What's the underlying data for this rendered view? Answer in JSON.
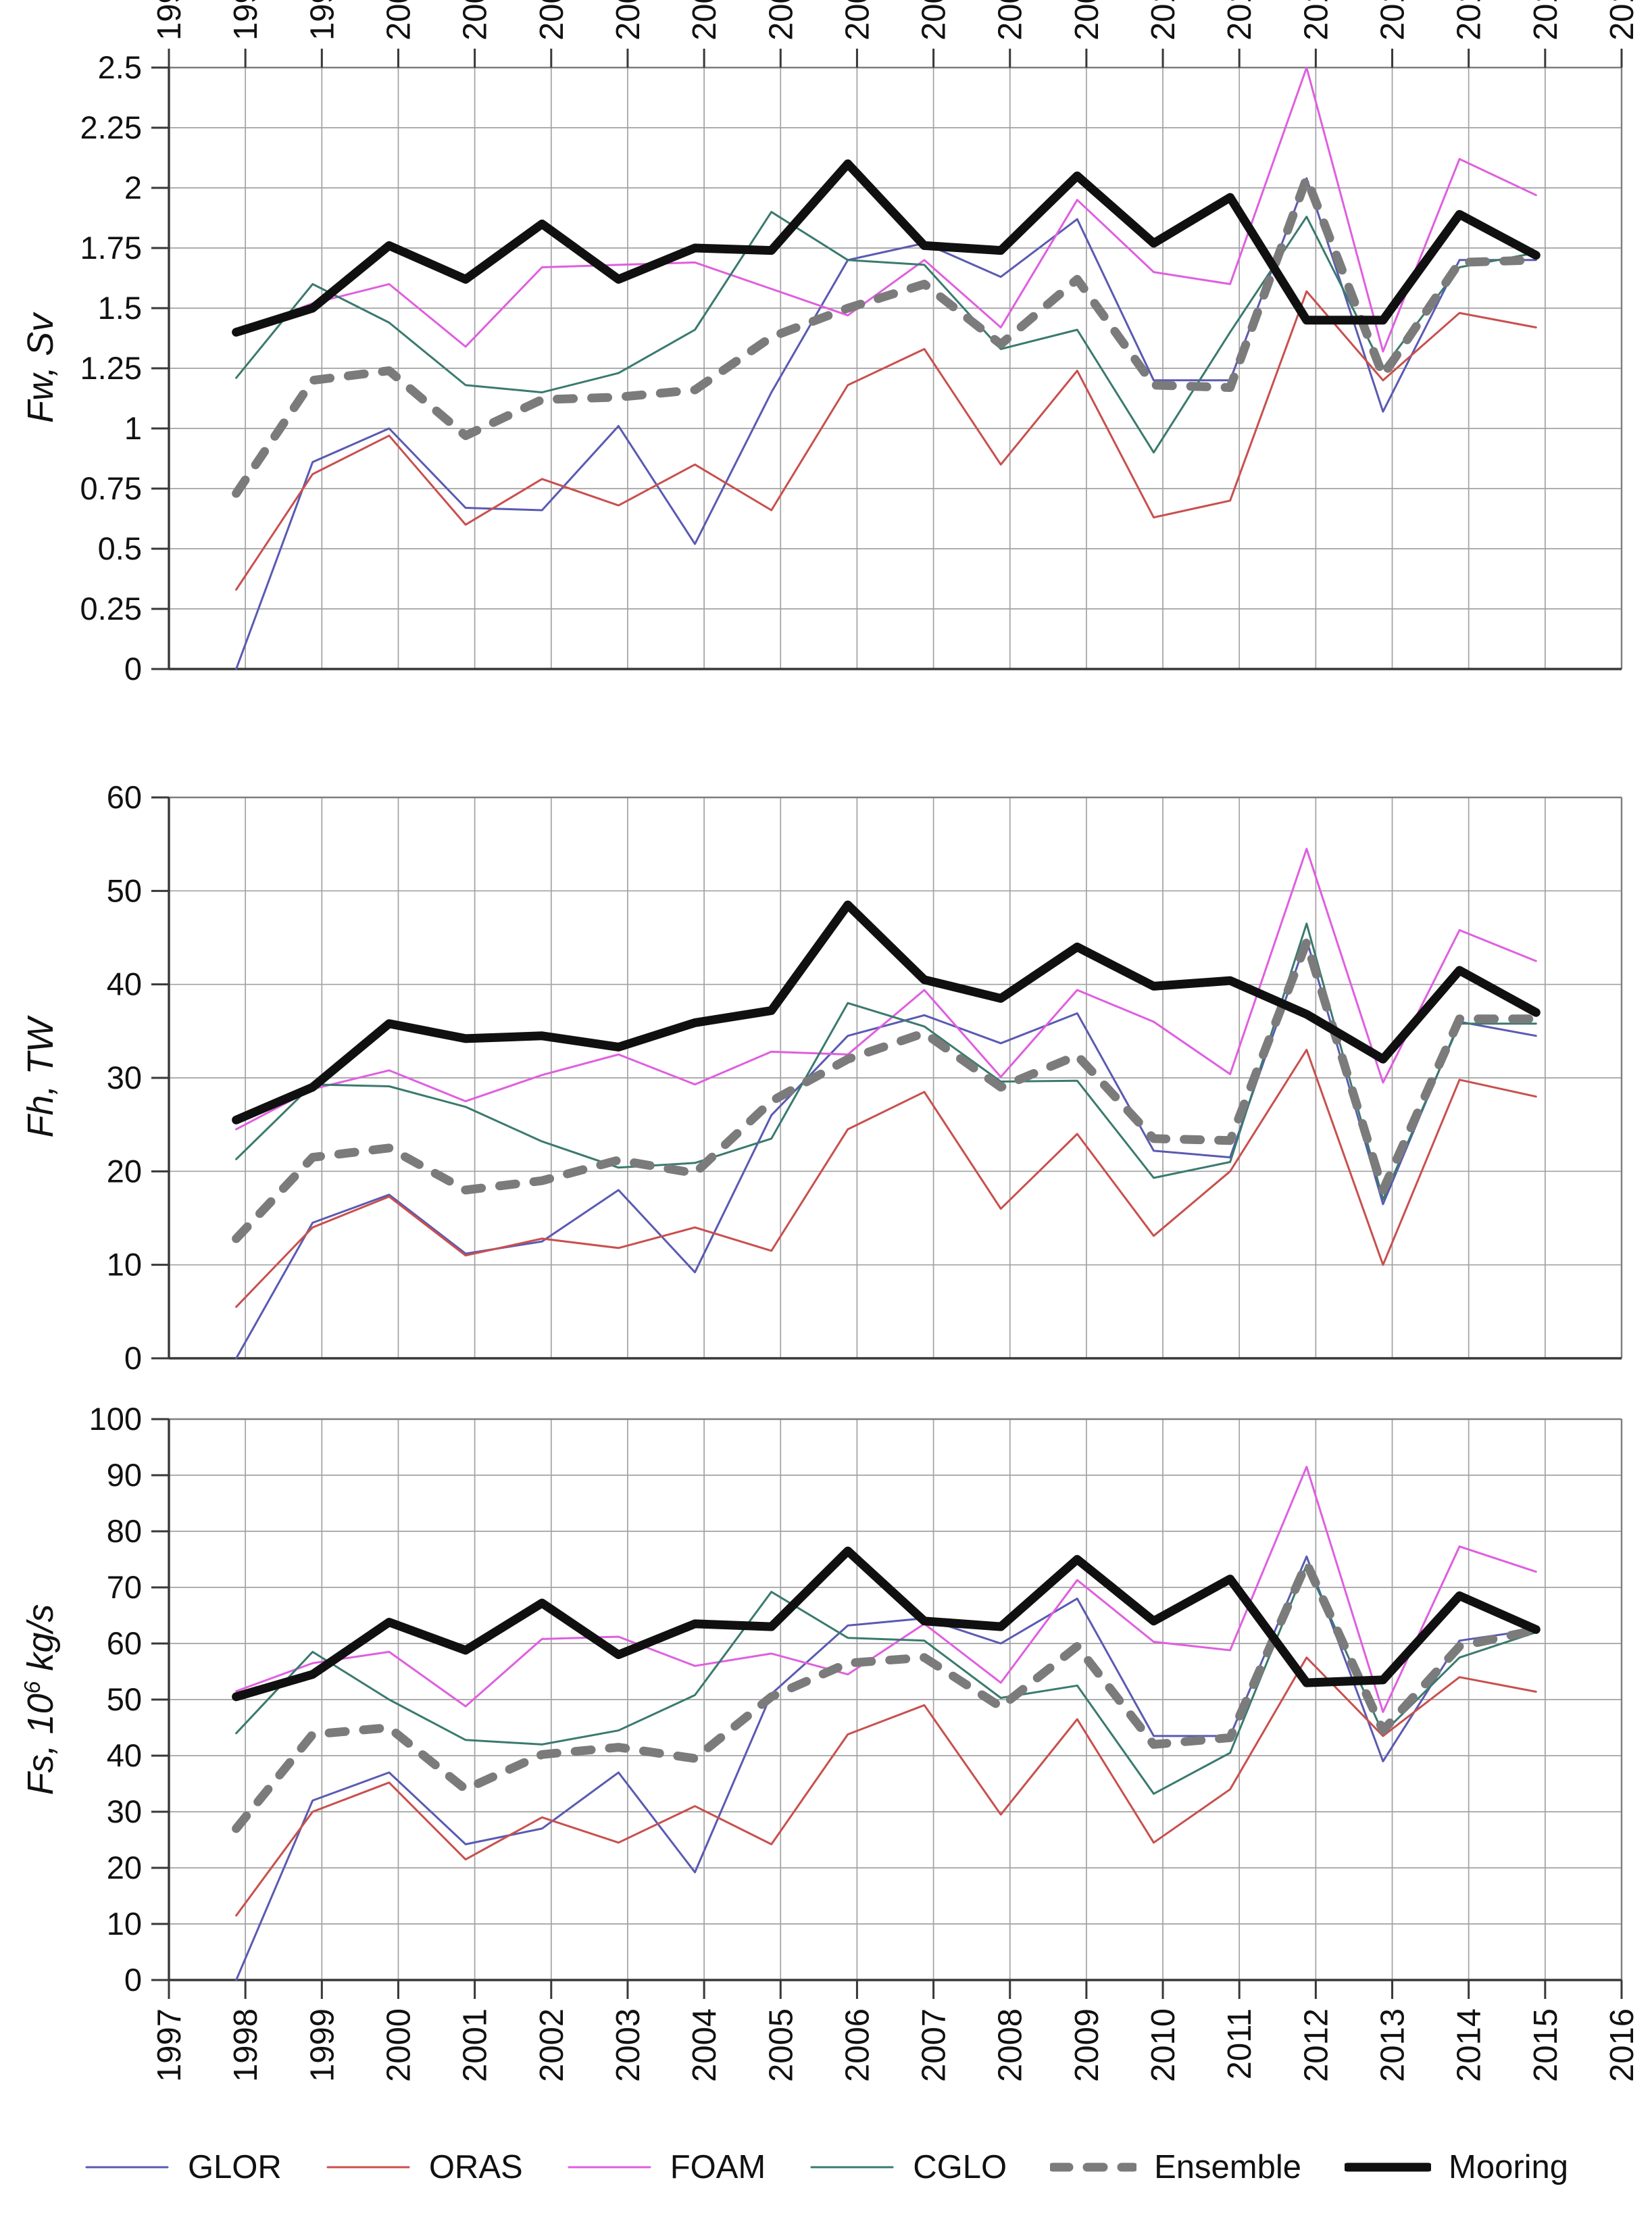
{
  "figure": {
    "description": "Three stacked annual time-series panels comparing ocean reanalysis models with mooring observations, 1998-2015",
    "background": "#ffffff"
  },
  "axis_titles": [
    {
      "main": "Fw, Sv",
      "sup": "",
      "tail": ""
    },
    {
      "main": "Fh, TW",
      "sup": "",
      "tail": ""
    },
    {
      "main": "Fs, 10",
      "sup": "6",
      "tail": " kg/s"
    }
  ],
  "legend": {
    "position": "bottom",
    "entries": [
      {
        "label": "GLOR",
        "color": "#5a5ab2",
        "width": 3,
        "dash": ""
      },
      {
        "label": "ORAS",
        "color": "#c8504e",
        "width": 3,
        "dash": ""
      },
      {
        "label": "FOAM",
        "color": "#df5fdf",
        "width": 3,
        "dash": ""
      },
      {
        "label": "CGLO",
        "color": "#3a7a6e",
        "width": 3,
        "dash": ""
      },
      {
        "label": "Ensemble",
        "color": "#7b7b7b",
        "width": 13,
        "dash": "24 27"
      },
      {
        "label": "Mooring",
        "color": "#101010",
        "width": 13,
        "dash": ""
      }
    ]
  },
  "chart_data": {
    "type": "line",
    "grid": true,
    "x": {
      "tick_labels": [
        "1997",
        "1998",
        "1999",
        "2000",
        "2001",
        "2002",
        "2003",
        "2004",
        "2005",
        "2006",
        "2007",
        "2008",
        "2009",
        "2010",
        "2011",
        "2012",
        "2013",
        "2014",
        "2015",
        "2016"
      ],
      "axis_range": [
        1997,
        2016
      ],
      "point_year_offset": 0.88
    },
    "data_years": [
      1998,
      1999,
      2000,
      2001,
      2002,
      2003,
      2004,
      2005,
      2006,
      2007,
      2008,
      2009,
      2010,
      2011,
      2012,
      2013,
      2014,
      2015
    ],
    "panels": [
      {
        "id": "freshwater-flux",
        "ylabel": "Fw, Sv",
        "ylim": [
          0,
          2.5
        ],
        "ytick_labels": [
          "2.5",
          "2.25",
          "2",
          "1.75",
          "1.5",
          "1.25",
          "1",
          "0.75",
          "0.5",
          "0.25",
          "0"
        ],
        "series": [
          {
            "name": "GLOR",
            "values": [
              0.0,
              0.86,
              1.0,
              0.67,
              0.66,
              1.01,
              0.52,
              1.15,
              1.7,
              1.77,
              1.63,
              1.87,
              1.2,
              1.2,
              2.04,
              1.07,
              1.7,
              1.7
            ]
          },
          {
            "name": "ORAS",
            "values": [
              0.33,
              0.81,
              0.97,
              0.6,
              0.79,
              0.68,
              0.85,
              0.66,
              1.18,
              1.33,
              0.85,
              1.24,
              0.63,
              0.7,
              1.57,
              1.2,
              1.48,
              1.42
            ]
          },
          {
            "name": "FOAM",
            "values": [
              1.4,
              1.52,
              1.6,
              1.34,
              1.67,
              1.68,
              1.69,
              1.58,
              1.47,
              1.7,
              1.42,
              1.95,
              1.65,
              1.6,
              2.5,
              1.32,
              2.12,
              1.97
            ]
          },
          {
            "name": "CGLO",
            "values": [
              1.21,
              1.6,
              1.44,
              1.18,
              1.15,
              1.23,
              1.41,
              1.9,
              1.7,
              1.68,
              1.33,
              1.41,
              0.9,
              1.4,
              1.88,
              1.25,
              1.67,
              1.73
            ]
          },
          {
            "name": "Ensemble",
            "values": [
              0.73,
              1.2,
              1.24,
              0.97,
              1.12,
              1.13,
              1.16,
              1.38,
              1.5,
              1.6,
              1.35,
              1.62,
              1.18,
              1.17,
              2.04,
              1.22,
              1.69,
              1.7
            ]
          },
          {
            "name": "Mooring",
            "values": [
              1.4,
              1.5,
              1.76,
              1.62,
              1.85,
              1.62,
              1.75,
              1.74,
              2.1,
              1.76,
              1.74,
              2.05,
              1.77,
              1.96,
              1.45,
              1.45,
              1.89,
              1.72
            ]
          }
        ]
      },
      {
        "id": "heat-flux",
        "ylabel": "Fh, TW",
        "ylim": [
          0,
          60
        ],
        "ytick_labels": [
          "60",
          "50",
          "40",
          "30",
          "20",
          "10",
          "0"
        ],
        "series": [
          {
            "name": "GLOR",
            "values": [
              0,
              14.5,
              17.5,
              11.2,
              12.5,
              18,
              9.2,
              26,
              34.5,
              36.7,
              33.7,
              36.9,
              22.2,
              21.5,
              44.8,
              16.5,
              36,
              34.5
            ]
          },
          {
            "name": "ORAS",
            "values": [
              5.5,
              14,
              17.3,
              11,
              12.8,
              11.8,
              14,
              11.5,
              24.5,
              28.5,
              16,
              24,
              13.1,
              20,
              33,
              10,
              29.8,
              28
            ]
          },
          {
            "name": "FOAM",
            "values": [
              24.5,
              28.8,
              30.8,
              27.5,
              30.3,
              32.5,
              29.3,
              32.8,
              32.5,
              39.4,
              30.1,
              39.4,
              36,
              30.4,
              54.5,
              29.5,
              45.8,
              42.5
            ]
          },
          {
            "name": "CGLO",
            "values": [
              21.3,
              29.3,
              29.1,
              26.9,
              23.2,
              20.4,
              20.9,
              23.5,
              38,
              35.5,
              29.6,
              29.7,
              19.3,
              21,
              46.5,
              17,
              35.8,
              35.8
            ]
          },
          {
            "name": "Ensemble",
            "values": [
              12.8,
              21.5,
              22.5,
              18,
              19,
              21.2,
              19.8,
              27.5,
              32,
              34.8,
              29,
              32.4,
              23.5,
              23.3,
              44.5,
              18,
              36.3,
              36.3
            ]
          },
          {
            "name": "Mooring",
            "values": [
              25.5,
              29,
              35.8,
              34.2,
              34.5,
              33.3,
              35.9,
              37.2,
              48.5,
              40.5,
              38.5,
              44,
              39.8,
              40.4,
              36.8,
              32,
              41.5,
              37
            ]
          }
        ]
      },
      {
        "id": "salt-flux",
        "ylabel": "Fs, 10^6 kg/s",
        "ylim": [
          0,
          100
        ],
        "ytick_labels": [
          "100",
          "90",
          "80",
          "70",
          "60",
          "50",
          "40",
          "30",
          "20",
          "10",
          "0"
        ],
        "series": [
          {
            "name": "GLOR",
            "values": [
              0,
              32,
              37,
              24.2,
              27,
              37,
              19.2,
              51,
              63.2,
              64.5,
              60,
              68,
              43.5,
              43.5,
              75.5,
              39,
              60.5,
              62.5
            ]
          },
          {
            "name": "ORAS",
            "values": [
              11.5,
              30,
              35.2,
              21.5,
              29,
              24.5,
              31,
              24.2,
              43.8,
              49,
              29.5,
              46.5,
              24.5,
              34,
              57.5,
              43.5,
              54,
              51.4
            ]
          },
          {
            "name": "FOAM",
            "values": [
              51.5,
              56.5,
              58.5,
              48.8,
              60.8,
              61.2,
              56,
              58.2,
              54.5,
              63.5,
              53,
              71.3,
              60.3,
              58.8,
              91.5,
              47.8,
              77.3,
              72.8
            ]
          },
          {
            "name": "CGLO",
            "values": [
              44,
              58.5,
              50,
              42.8,
              42,
              44.5,
              50.8,
              69.2,
              61,
              60.5,
              50.3,
              52.5,
              33.2,
              40.5,
              74,
              44,
              57.5,
              62
            ]
          },
          {
            "name": "Ensemble",
            "values": [
              27,
              43.8,
              45,
              34,
              40.2,
              41.5,
              39.5,
              50.5,
              56.5,
              57.5,
              48.7,
              59.5,
              42,
              43.2,
              74.3,
              44.5,
              59.5,
              62.4
            ]
          },
          {
            "name": "Mooring",
            "values": [
              50.5,
              54.5,
              63.8,
              58.8,
              67.2,
              58,
              63.5,
              63,
              76.5,
              64,
              63,
              75,
              64,
              71.5,
              53,
              53.5,
              68.5,
              62.5
            ]
          }
        ]
      }
    ]
  }
}
